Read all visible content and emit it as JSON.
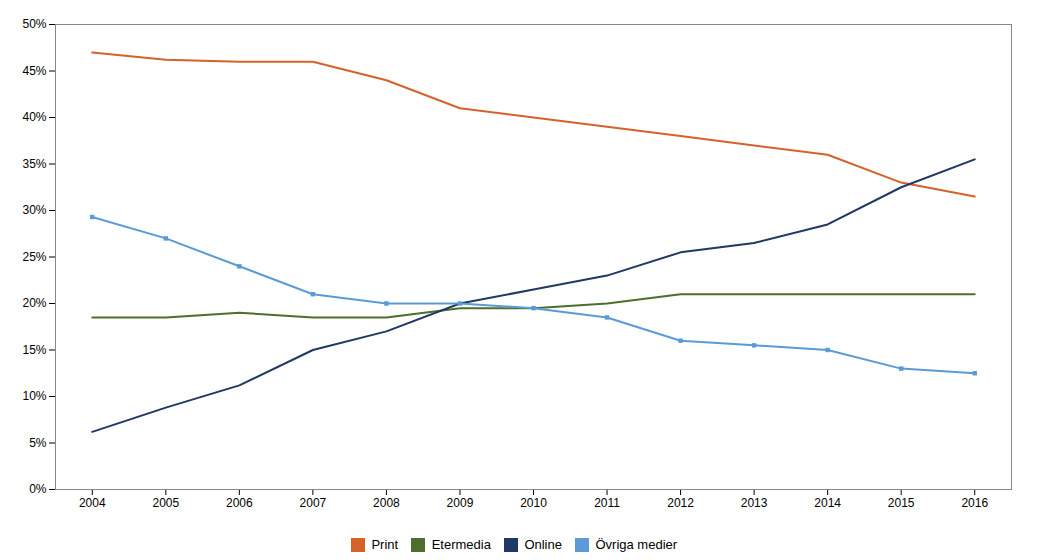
{
  "chart_data": {
    "type": "line",
    "x": [
      2004,
      2005,
      2006,
      2007,
      2008,
      2009,
      2010,
      2011,
      2012,
      2013,
      2014,
      2015,
      2016
    ],
    "series": [
      {
        "name": "Print",
        "color": "#D4622A",
        "values": [
          0.47,
          0.462,
          0.46,
          0.46,
          0.44,
          0.41,
          0.4,
          0.39,
          0.38,
          0.37,
          0.36,
          0.33,
          0.315
        ]
      },
      {
        "name": "Etermedia",
        "color": "#4E6E2E",
        "values": [
          0.185,
          0.185,
          0.19,
          0.185,
          0.185,
          0.195,
          0.195,
          0.2,
          0.21,
          0.21,
          0.21,
          0.21,
          0.21
        ]
      },
      {
        "name": "Online",
        "color": "#1F3864",
        "values": [
          0.062,
          0.088,
          0.112,
          0.15,
          0.17,
          0.2,
          0.215,
          0.23,
          0.255,
          0.265,
          0.285,
          0.325,
          0.355
        ]
      },
      {
        "name": "Övriga medier",
        "color": "#5B9BD5",
        "marker": "square",
        "values": [
          0.293,
          0.27,
          0.24,
          0.21,
          0.2,
          0.2,
          0.195,
          0.185,
          0.16,
          0.155,
          0.15,
          0.13,
          0.125
        ]
      }
    ],
    "xlim": [
      2003.5,
      2016.5
    ],
    "xticks": [
      2004,
      2005,
      2006,
      2007,
      2008,
      2009,
      2010,
      2011,
      2012,
      2013,
      2014,
      2015,
      2016
    ],
    "ylim": [
      0,
      0.5
    ],
    "yticks": [
      {
        "value": 0.0,
        "label": "0%"
      },
      {
        "value": 0.05,
        "label": "5%"
      },
      {
        "value": 0.1,
        "label": "10%"
      },
      {
        "value": 0.15,
        "label": "15%"
      },
      {
        "value": 0.2,
        "label": "20%"
      },
      {
        "value": 0.25,
        "label": "25%"
      },
      {
        "value": 0.3,
        "label": "30%"
      },
      {
        "value": 0.35,
        "label": "35%"
      },
      {
        "value": 0.4,
        "label": "40%"
      },
      {
        "value": 0.45,
        "label": "45%"
      },
      {
        "value": 0.5,
        "label": "50%"
      }
    ],
    "grid": false,
    "legend": "bottom"
  }
}
